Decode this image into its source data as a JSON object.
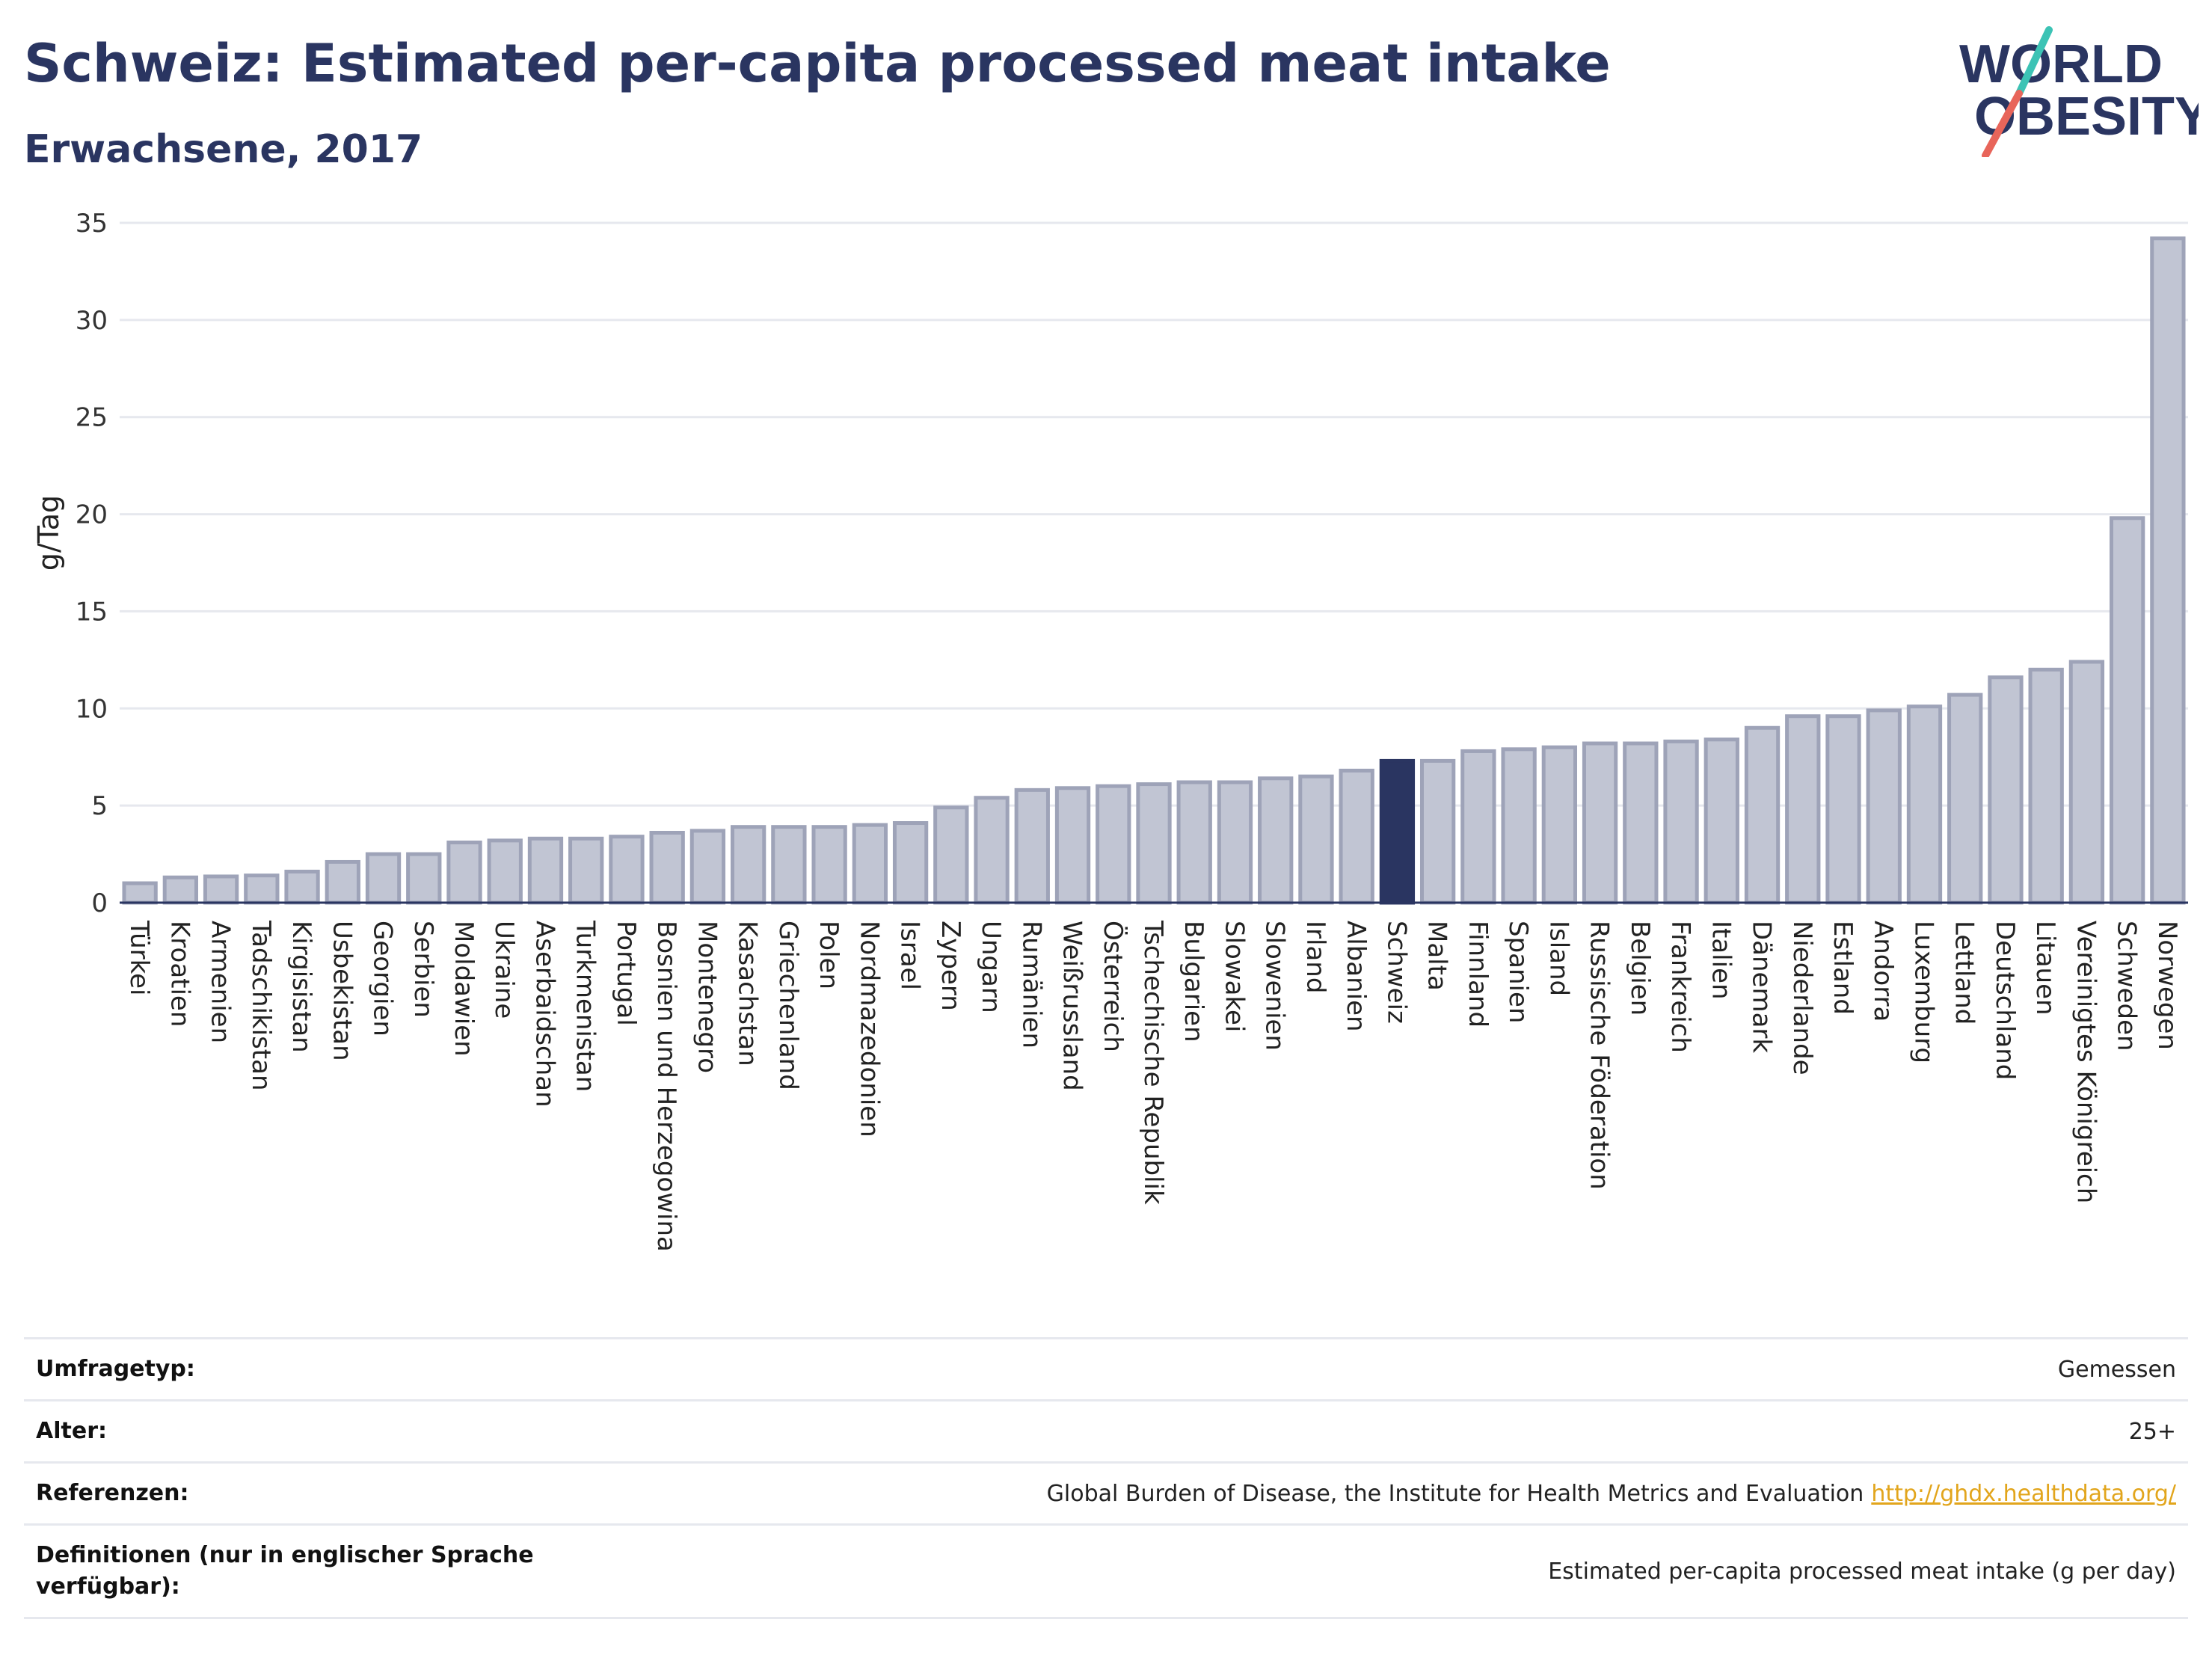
{
  "header": {
    "title": "Schweiz: Estimated per-capita processed meat intake",
    "subtitle": "Erwachsene, 2017"
  },
  "logo": {
    "line1": "WORLD",
    "line2": "OBESITY",
    "accent_colors": [
      "#3cc3b5",
      "#e8655a"
    ],
    "text_color": "#2a3561"
  },
  "chart_data": {
    "type": "bar",
    "ylabel": "g/Tag",
    "ylim": [
      0,
      35
    ],
    "yticks": [
      0,
      5,
      10,
      15,
      20,
      25,
      30,
      35
    ],
    "grid": true,
    "highlight": "Schweiz",
    "colors": {
      "bar": "#c1c5d3",
      "bar_edge": "#9ea3b8",
      "highlight": "#2a3561"
    },
    "categories": [
      "Türkei",
      "Kroatien",
      "Armenien",
      "Tadschikistan",
      "Kirgisistan",
      "Usbekistan",
      "Georgien",
      "Serbien",
      "Moldawien",
      "Ukraine",
      "Aserbaidschan",
      "Turkmenistan",
      "Portugal",
      "Bosnien und Herzegowina",
      "Montenegro",
      "Kasachstan",
      "Griechenland",
      "Polen",
      "Nordmazedonien",
      "Israel",
      "Zypern",
      "Ungarn",
      "Rumänien",
      "Weißrussland",
      "Österreich",
      "Tschechische Republik",
      "Bulgarien",
      "Slowakei",
      "Slowenien",
      "Irland",
      "Albanien",
      "Schweiz",
      "Malta",
      "Finnland",
      "Spanien",
      "Island",
      "Russische Föderation",
      "Belgien",
      "Frankreich",
      "Italien",
      "Dänemark",
      "Niederlande",
      "Estland",
      "Andorra",
      "Luxemburg",
      "Lettland",
      "Deutschland",
      "Litauen",
      "Vereinigtes Königreich",
      "Schweden",
      "Norwegen"
    ],
    "values": [
      1.0,
      1.3,
      1.35,
      1.4,
      1.6,
      2.1,
      2.5,
      2.5,
      3.1,
      3.2,
      3.3,
      3.3,
      3.4,
      3.6,
      3.7,
      3.9,
      3.9,
      3.9,
      4.0,
      4.1,
      4.9,
      5.4,
      5.8,
      5.9,
      6.0,
      6.1,
      6.2,
      6.2,
      6.4,
      6.5,
      6.8,
      7.3,
      7.3,
      7.8,
      7.9,
      8.0,
      8.2,
      8.2,
      8.3,
      8.4,
      9.0,
      9.6,
      9.6,
      9.9,
      10.1,
      10.7,
      11.6,
      12.0,
      12.4,
      19.8,
      34.2
    ]
  },
  "info_table": [
    {
      "key": "Umfragetyp:",
      "value": "Gemessen"
    },
    {
      "key": "Alter:",
      "value": "25+"
    },
    {
      "key": "Referenzen:",
      "value": "Global Burden of Disease, the Institute for Health Metrics and Evaluation",
      "link": "http://ghdx.healthdata.org/"
    },
    {
      "key": "Definitionen (nur in englischer Sprache verfügbar):",
      "value": "Estimated per-capita processed meat intake (g per day)"
    }
  ]
}
